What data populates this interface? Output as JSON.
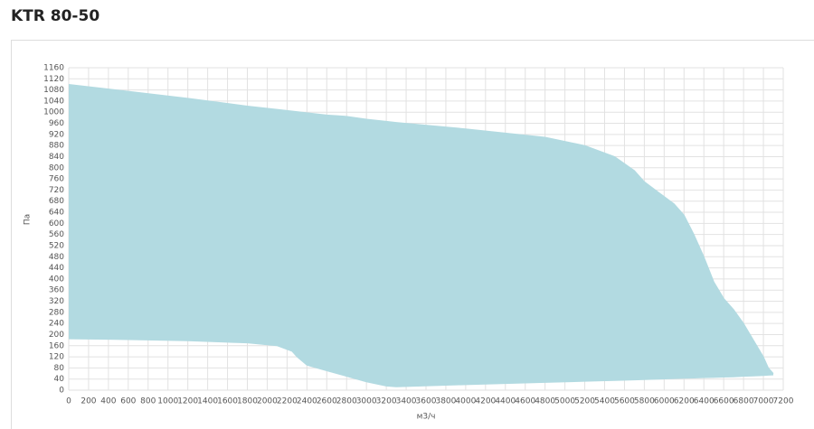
{
  "chart_data": {
    "type": "area",
    "title": "KTR 80-50",
    "x_label": "м3/ч",
    "y_label": "Па",
    "x": [
      0,
      600,
      1200,
      1800,
      2100,
      2250,
      2300,
      2400,
      2600,
      2800,
      3000,
      3200,
      3300,
      4000,
      4400,
      4800,
      5200,
      5500,
      5700,
      5800,
      5950,
      6100,
      6200,
      6300,
      6400,
      6500,
      6600,
      6700,
      6800,
      6900,
      7000,
      7050,
      7100
    ],
    "series": [
      {
        "color": "#b2dae1",
        "values": [
          1100,
          1075,
          1050,
          1022,
          1010,
          1004,
          1002,
          998,
          990,
          985,
          975,
          967,
          963,
          940,
          925,
          910,
          880,
          840,
          790,
          750,
          710,
          670,
          630,
          560,
          480,
          390,
          330,
          290,
          240,
          180,
          120,
          80,
          60
        ]
      },
      {
        "color": "#b2dae1",
        "values": [
          185,
          182,
          178,
          170,
          160,
          140,
          120,
          90,
          70,
          50,
          30,
          15,
          12,
          20,
          24,
          28,
          32,
          35,
          37,
          38,
          40,
          42,
          43,
          44,
          45,
          46,
          47,
          48,
          50,
          51,
          53,
          54,
          55
        ]
      }
    ],
    "xlim": [
      0,
      7200
    ],
    "ylim": [
      0,
      1160
    ],
    "xticks": [
      0,
      200,
      400,
      600,
      800,
      1000,
      1200,
      1400,
      1600,
      1800,
      2000,
      2200,
      2400,
      2600,
      2800,
      3000,
      3200,
      3400,
      3600,
      3800,
      4000,
      4200,
      4400,
      4600,
      4800,
      5000,
      5200,
      5400,
      5600,
      5800,
      6000,
      6200,
      6400,
      6600,
      6800,
      7000,
      7200
    ],
    "yticks": [
      0,
      40,
      80,
      120,
      160,
      200,
      240,
      280,
      320,
      360,
      400,
      440,
      480,
      520,
      560,
      600,
      640,
      680,
      720,
      760,
      800,
      840,
      880,
      920,
      960,
      1000,
      1040,
      1080,
      1120,
      1160
    ],
    "grid": true
  }
}
